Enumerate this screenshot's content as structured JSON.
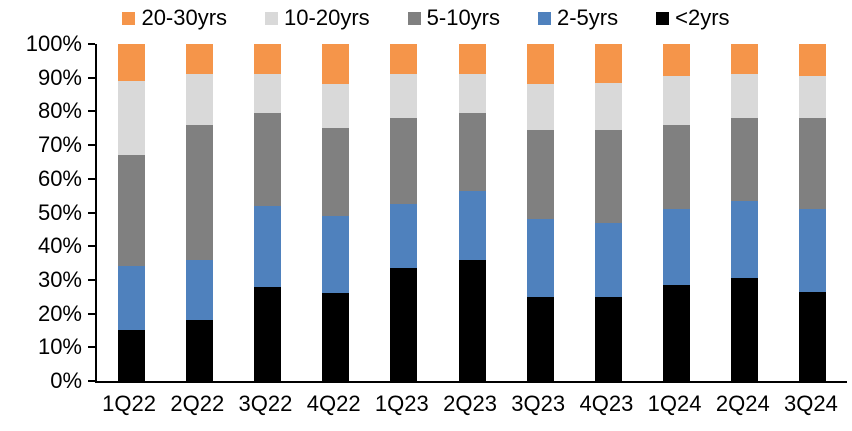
{
  "chart_data": {
    "type": "bar",
    "stacked": true,
    "percent_stacked": true,
    "title": "",
    "xlabel": "",
    "ylabel": "",
    "ylim": [
      0,
      100
    ],
    "grid": false,
    "legend_position": "top",
    "axis_color": "#000000",
    "categories": [
      "1Q22",
      "2Q22",
      "3Q22",
      "4Q22",
      "1Q23",
      "2Q23",
      "3Q23",
      "4Q23",
      "1Q24",
      "2Q24",
      "3Q24"
    ],
    "yticks": [
      "0%",
      "10%",
      "20%",
      "30%",
      "40%",
      "50%",
      "60%",
      "70%",
      "80%",
      "90%",
      "100%"
    ],
    "series": [
      {
        "name": "20-30yrs",
        "color": "#F5954A",
        "values": [
          11,
          9,
          9,
          12,
          9,
          9,
          12,
          11.5,
          9.5,
          9,
          9.5
        ]
      },
      {
        "name": "10-20yrs",
        "color": "#D9D9D9",
        "values": [
          22,
          15,
          11.5,
          13,
          13,
          11.5,
          13.5,
          14,
          14.5,
          13,
          12.5
        ]
      },
      {
        "name": "5-10yrs",
        "color": "#808080",
        "values": [
          33,
          40,
          27.5,
          26,
          25.5,
          23,
          26.5,
          27.5,
          25,
          24.5,
          27
        ]
      },
      {
        "name": "2-5yrs",
        "color": "#4F81BD",
        "values": [
          19,
          18,
          24,
          23,
          19,
          20.5,
          23,
          22,
          22.5,
          23,
          24.5
        ]
      },
      {
        "name": "<2yrs",
        "color": "#000000",
        "values": [
          15,
          18,
          28,
          26,
          33.5,
          36,
          25,
          25,
          28.5,
          30.5,
          26.5
        ]
      }
    ]
  }
}
